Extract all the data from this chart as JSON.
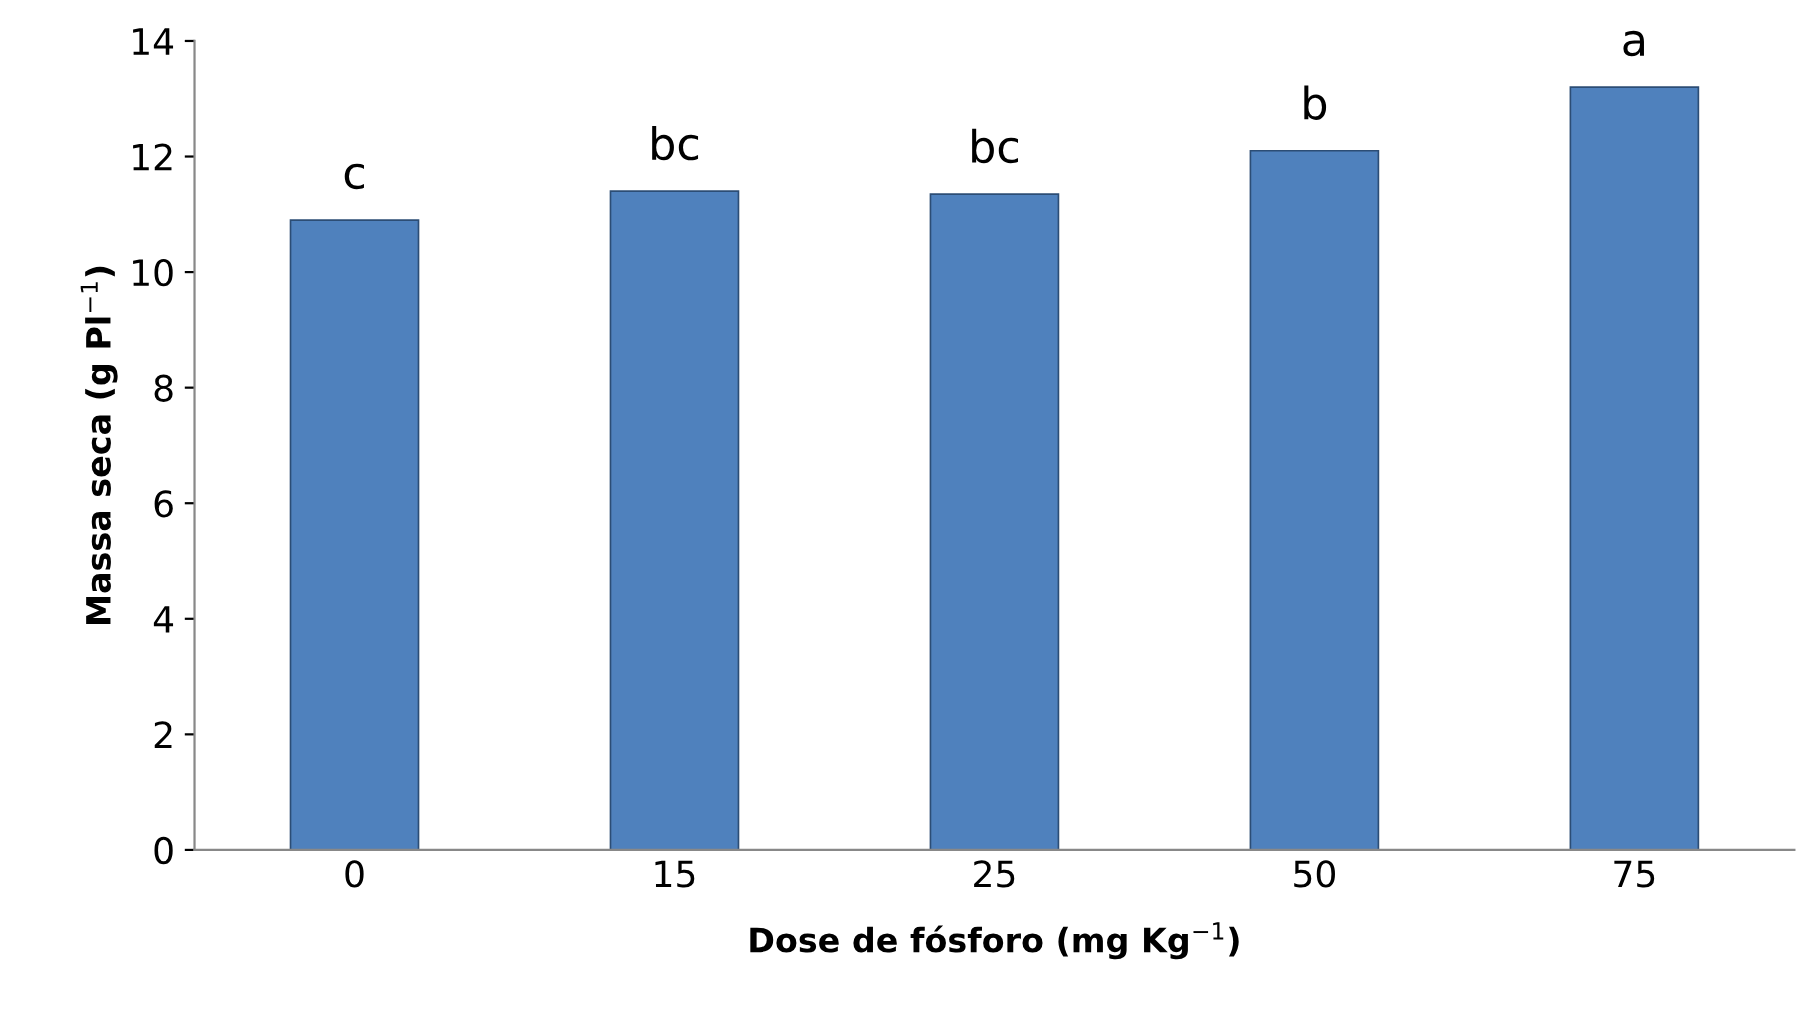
{
  "chart_data": {
    "type": "bar",
    "xlabel": "Dose de fósforo (mg Kg$^{−1}$)",
    "ylabel": "Massa seca (g Pl$^{−1}$)",
    "categories": [
      "0",
      "15",
      "25",
      "50",
      "75"
    ],
    "series": [
      {
        "color": "#4f81bd",
        "values": [
          10.9,
          11.4,
          11.35,
          12.1,
          13.2
        ]
      }
    ],
    "ylim": [
      0,
      14
    ],
    "yticks": [
      0,
      2,
      4,
      6,
      8,
      10,
      12,
      14
    ],
    "grid": false,
    "annotations": [
      {
        "text": "c",
        "x": "0",
        "y": 10.9
      },
      {
        "text": "bc",
        "x": "15",
        "y": 11.4
      },
      {
        "text": "bc",
        "x": "25",
        "y": 11.35
      },
      {
        "text": "b",
        "x": "50",
        "y": 12.1
      },
      {
        "text": "a",
        "x": "75",
        "y": 13.2
      }
    ]
  }
}
